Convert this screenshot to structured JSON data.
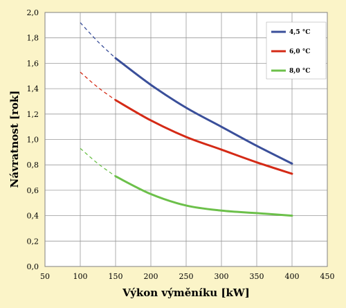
{
  "chart_data": {
    "type": "line",
    "title": "",
    "xlabel": "Výkon výměníku [kW]",
    "ylabel": "Návratnost [rok]",
    "xlim": [
      50,
      450
    ],
    "ylim": [
      0,
      2
    ],
    "x_ticks": [
      50,
      100,
      150,
      200,
      250,
      300,
      350,
      400,
      450
    ],
    "y_ticks": [
      0,
      0.2,
      0.4,
      0.6,
      0.8,
      1.0,
      1.2,
      1.4,
      1.6,
      1.8,
      2.0
    ],
    "x_tick_labels": [
      "50",
      "100",
      "150",
      "200",
      "250",
      "300",
      "350",
      "400",
      "450"
    ],
    "y_tick_labels": [
      "0,0",
      "0,2",
      "0,4",
      "0,6",
      "0,8",
      "1,0",
      "1,2",
      "1,4",
      "1,6",
      "1,8",
      "2,0"
    ],
    "grid": "horizontal and vertical",
    "legend_position": "top-right",
    "series": [
      {
        "name": "4,5 °C",
        "color": "#3a4f9a",
        "x": [
          150,
          200,
          250,
          300,
          350,
          400
        ],
        "values": [
          1.64,
          1.43,
          1.25,
          1.1,
          0.95,
          0.81
        ],
        "extrapolated": {
          "x": [
            100,
            125,
            150
          ],
          "values": [
            1.92,
            1.77,
            1.64
          ]
        }
      },
      {
        "name": "6,0 °C",
        "color": "#d42a16",
        "x": [
          150,
          200,
          250,
          300,
          350,
          400
        ],
        "values": [
          1.31,
          1.15,
          1.02,
          0.92,
          0.82,
          0.73
        ],
        "extrapolated": {
          "x": [
            100,
            125,
            150
          ],
          "values": [
            1.53,
            1.41,
            1.31
          ]
        }
      },
      {
        "name": "8,0 °C",
        "color": "#6cc04a",
        "x": [
          150,
          200,
          250,
          300,
          350,
          400
        ],
        "values": [
          0.71,
          0.57,
          0.48,
          0.44,
          0.42,
          0.4
        ],
        "extrapolated": {
          "x": [
            100,
            125,
            150
          ],
          "values": [
            0.93,
            0.81,
            0.71
          ]
        }
      }
    ]
  }
}
